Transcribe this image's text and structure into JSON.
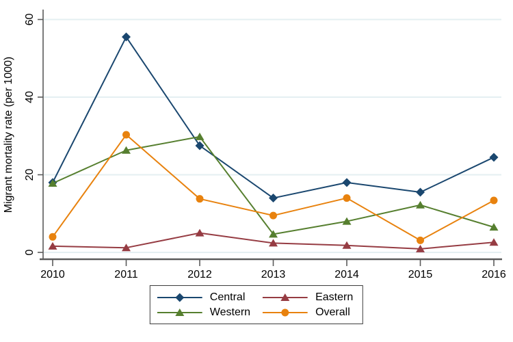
{
  "chart_data": {
    "type": "line",
    "title": "",
    "xlabel": "",
    "ylabel": "Migrant mortality rate (per 1000)",
    "x": [
      2010,
      2011,
      2012,
      2013,
      2014,
      2015,
      2016
    ],
    "xtick_labels": [
      "2010",
      "2011",
      "2012",
      "2013",
      "2014",
      "2015",
      "2016"
    ],
    "ylim": [
      0,
      60
    ],
    "yticks": [
      0,
      20,
      40,
      60
    ],
    "ytick_labels": [
      "0",
      "20",
      "40",
      "60"
    ],
    "grid": "horizontal gridlines at y ticks",
    "gridline_color": "#e4eff2",
    "axis_color": "#5a5a5a",
    "text_color": "#000000",
    "legend_position": "bottom-center",
    "series": [
      {
        "name": "Central",
        "marker": "diamond",
        "color": "#1a476f",
        "values": [
          18.0,
          55.5,
          27.5,
          14.0,
          18.0,
          15.5,
          24.5
        ]
      },
      {
        "name": "Eastern",
        "marker": "triangle",
        "color": "#963c43",
        "values": [
          1.6,
          1.2,
          5.0,
          2.4,
          1.8,
          0.9,
          2.6
        ]
      },
      {
        "name": "Western",
        "marker": "triangle",
        "color": "#567f2f",
        "values": [
          17.8,
          26.3,
          29.8,
          4.7,
          8.0,
          12.2,
          6.5
        ]
      },
      {
        "name": "Overall",
        "marker": "circle",
        "color": "#e8820e",
        "values": [
          4.0,
          30.3,
          13.8,
          9.5,
          14.0,
          3.1,
          13.4
        ]
      }
    ]
  }
}
